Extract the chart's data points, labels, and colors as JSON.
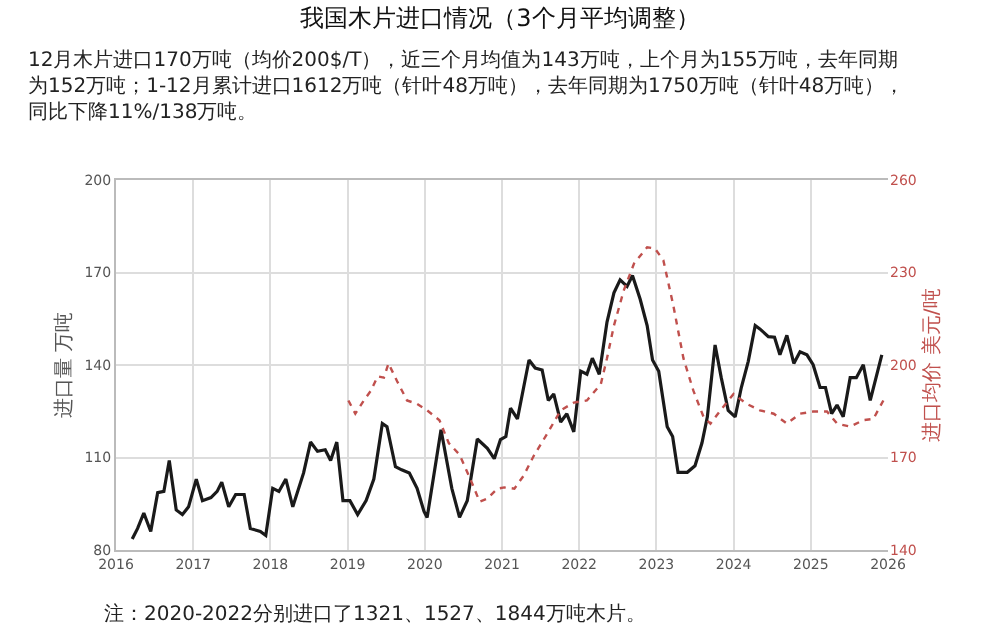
{
  "chart_data": {
    "type": "line",
    "title": "我国木片进口情况（3个月平均调整）",
    "subtitle": "12月木片进口170万吨（均价200$/T），近三个月均值为143万吨，上个月为155万吨，去年同期为152万吨；1-12月累计进口1612万吨（针叶48万吨），去年同期为1750万吨（针叶48万吨），同比下降11%/138万吨。",
    "ylabel": "进口量 万吨",
    "y2label": "进口均价 美元/吨",
    "annotations": [
      "注：2020-2022分别进口了1321、1527、1844万吨木片。"
    ],
    "xlim": [
      2016,
      2026
    ],
    "xticks": [
      2016,
      2017,
      2018,
      2019,
      2020,
      2021,
      2022,
      2023,
      2024,
      2025,
      2026
    ],
    "ylim": [
      80,
      200
    ],
    "yticks": [
      80,
      110,
      140,
      170,
      200
    ],
    "y2lim": [
      140,
      260
    ],
    "y2ticks": [
      140,
      170,
      200,
      230,
      260
    ],
    "grid": true,
    "marker": "none",
    "series": [
      {
        "color": "#1a1a1a",
        "line_style": "solid",
        "x": [
          2016.21,
          2016.28,
          2016.36,
          2016.45,
          2016.54,
          2016.62,
          2016.69,
          2016.78,
          2016.86,
          2016.94,
          2017.04,
          2017.12,
          2017.23,
          2017.31,
          2017.37,
          2017.46,
          2017.55,
          2017.66,
          2017.74,
          2017.87,
          2017.94,
          2018.03,
          2018.11,
          2018.2,
          2018.29,
          2018.43,
          2018.52,
          2018.61,
          2018.71,
          2018.78,
          2018.86,
          2018.94,
          2019.03,
          2019.13,
          2019.24,
          2019.34,
          2019.45,
          2019.51,
          2019.62,
          2019.7,
          2019.8,
          2019.9,
          2019.99,
          2020.03,
          2020.21,
          2020.35,
          2020.45,
          2020.55,
          2020.68,
          2020.81,
          2020.9,
          2020.98,
          2021.05,
          2021.11,
          2021.2,
          2021.28,
          2021.35,
          2021.43,
          2021.52,
          2021.6,
          2021.67,
          2021.76,
          2021.84,
          2021.93,
          2022.02,
          2022.1,
          2022.17,
          2022.26,
          2022.36,
          2022.45,
          2022.53,
          2022.62,
          2022.69,
          2022.79,
          2022.88,
          2022.95,
          2023.03,
          2023.14,
          2023.21,
          2023.28,
          2023.4,
          2023.5,
          2023.59,
          2023.66,
          2023.76,
          2023.84,
          2023.93,
          2024.02,
          2024.1,
          2024.19,
          2024.28,
          2024.34,
          2024.45,
          2024.53,
          2024.6,
          2024.69,
          2024.78,
          2024.86,
          2024.95,
          2025.03,
          2025.12,
          2025.19,
          2025.27,
          2025.34,
          2025.42,
          2025.51,
          2025.59,
          2025.68,
          2025.77,
          2025.92
        ],
        "values": [
          83.6,
          87,
          92,
          86,
          98.6,
          99,
          109,
          93,
          91.5,
          94,
          103,
          96,
          97,
          99,
          102,
          94,
          98,
          98,
          87,
          86,
          84.7,
          100,
          99,
          103,
          94,
          105,
          115,
          112,
          112.5,
          109,
          115,
          96,
          96,
          91.5,
          96,
          103,
          121,
          120,
          107,
          106,
          105,
          100,
          92.5,
          90.5,
          119,
          100,
          90.6,
          96,
          116,
          113,
          109.6,
          115.8,
          116.8,
          126,
          122.5,
          132.7,
          141.6,
          139,
          138.4,
          128.5,
          130.6,
          121.5,
          124.2,
          118.3,
          138,
          137,
          142.2,
          137,
          153.9,
          163.4,
          167.6,
          165.5,
          169,
          161.3,
          152.8,
          141.6,
          138,
          120,
          116.8,
          105.2,
          105.2,
          107.3,
          114.7,
          123.2,
          146.5,
          135.9,
          125.3,
          123.2,
          132.7,
          141.2,
          152.8,
          151.7,
          149.2,
          149,
          143.3,
          149.6,
          140.5,
          144.3,
          143.3,
          140.1,
          132.7,
          132.7,
          124.2,
          127,
          123.2,
          135.9,
          135.9,
          140.1,
          128.5,
          143.3
        ]
      },
      {
        "color": "#c0504d",
        "line_style": "dotted",
        "axis": "y2",
        "x": [
          2019.01,
          2019.1,
          2019.21,
          2019.3,
          2019.39,
          2019.47,
          2019.53,
          2019.64,
          2019.77,
          2019.9,
          2020.03,
          2020.19,
          2020.31,
          2020.45,
          2020.59,
          2020.71,
          2020.81,
          2020.94,
          2021.03,
          2021.16,
          2021.28,
          2021.41,
          2021.59,
          2021.76,
          2021.93,
          2022.1,
          2022.28,
          2022.36,
          2022.45,
          2022.58,
          2022.71,
          2022.88,
          2022.98,
          2023.09,
          2023.22,
          2023.35,
          2023.48,
          2023.61,
          2023.7,
          2023.83,
          2024.0,
          2024.17,
          2024.34,
          2024.52,
          2024.69,
          2024.86,
          2025.03,
          2025.21,
          2025.34,
          2025.51,
          2025.68,
          2025.81,
          2025.94
        ],
        "values": [
          188.5,
          184.2,
          188.5,
          191.6,
          196.3,
          195.9,
          200.5,
          194.8,
          188.5,
          187.4,
          185.3,
          182.1,
          174.7,
          170.9,
          163,
          155.7,
          156.7,
          159.9,
          160.3,
          159.9,
          164.1,
          170.5,
          177.9,
          185.3,
          187.8,
          188.5,
          193.8,
          202.2,
          212.8,
          224.4,
          232.9,
          238.2,
          237.8,
          234,
          219.2,
          202.2,
          191.6,
          183.2,
          181,
          185.3,
          190.6,
          187.4,
          185.3,
          184.2,
          181,
          184.2,
          184.9,
          184.9,
          181,
          180,
          182.1,
          182.5,
          188.5
        ]
      }
    ]
  }
}
